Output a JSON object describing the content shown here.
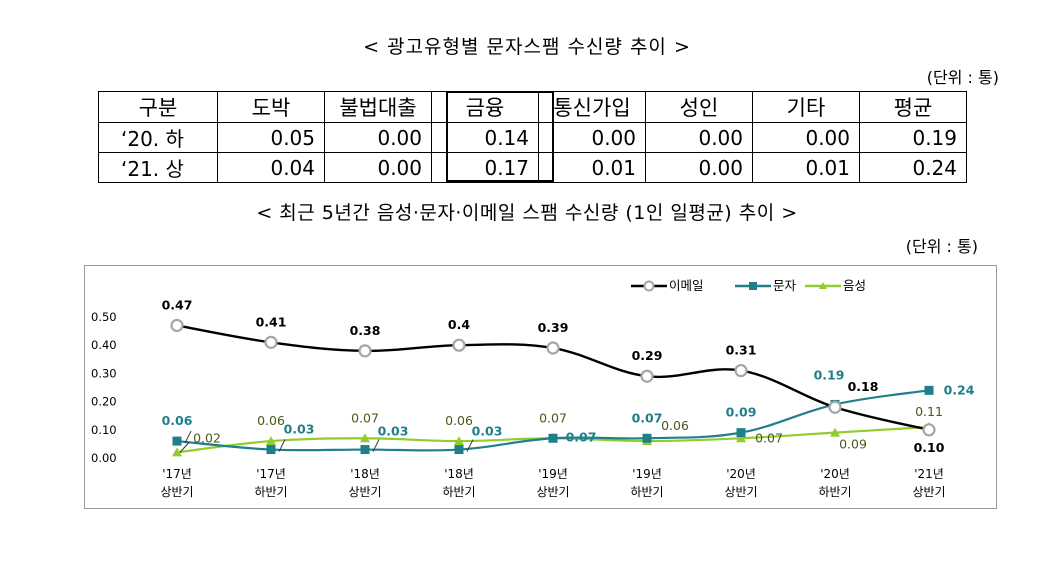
{
  "section1": {
    "title": "< 광고유형별 문자스팸 수신량 추이 >",
    "unit": "(단위 : 통)",
    "headers": [
      "구분",
      "도박",
      "불법대출",
      "금융",
      "통신가입",
      "성인",
      "기타",
      "평균"
    ],
    "rows": [
      {
        "label": "‘20. 하",
        "values": [
          "0.05",
          "0.00",
          "0.14",
          "0.00",
          "0.00",
          "0.00",
          "0.19"
        ]
      },
      {
        "label": "‘21. 상",
        "values": [
          "0.04",
          "0.00",
          "0.17",
          "0.01",
          "0.00",
          "0.01",
          "0.24"
        ]
      }
    ]
  },
  "section2": {
    "title": "< 최근 5년간 음성·문자·이메일 스팸 수신량 (1인 일평균) 추이 >",
    "unit": "(단위 : 통)"
  },
  "chart_data": {
    "type": "line",
    "title": "",
    "xlabel": "",
    "ylabel": "",
    "ylim": [
      0,
      0.5
    ],
    "yticks": [
      "0.00",
      "0.10",
      "0.20",
      "0.30",
      "0.40",
      "0.50"
    ],
    "grid": false,
    "legend_position": "top-right",
    "categories": [
      [
        "'17년",
        "상반기"
      ],
      [
        "'17년",
        "하반기"
      ],
      [
        "'18년",
        "상반기"
      ],
      [
        "'18년",
        "하반기"
      ],
      [
        "'19년",
        "상반기"
      ],
      [
        "'19년",
        "하반기"
      ],
      [
        "'20년",
        "상반기"
      ],
      [
        "'20년",
        "하반기"
      ],
      [
        "'21년",
        "상반기"
      ]
    ],
    "series": [
      {
        "name": "이메일",
        "color": "#000000",
        "marker": "circle",
        "values": [
          0.47,
          0.41,
          0.38,
          0.4,
          0.39,
          0.29,
          0.31,
          0.18,
          0.1
        ],
        "labels": [
          "0.47",
          "0.41",
          "0.38",
          "0.4",
          "0.39",
          "0.29",
          "0.31",
          "0.18",
          "0.10"
        ]
      },
      {
        "name": "문자",
        "color": "#1f7f8c",
        "marker": "square",
        "values": [
          0.06,
          0.03,
          0.03,
          0.03,
          0.07,
          0.07,
          0.09,
          0.19,
          0.24
        ],
        "labels": [
          "0.06",
          "0.03",
          "0.03",
          "0.03",
          "0.07",
          "0.07",
          "0.09",
          "0.19",
          "0.24"
        ]
      },
      {
        "name": "음성",
        "color": "#92cc2f",
        "marker": "triangle",
        "values": [
          0.02,
          0.06,
          0.07,
          0.06,
          0.07,
          0.06,
          0.07,
          0.09,
          0.11
        ],
        "labels": [
          "0.02",
          "0.06",
          "0.07",
          "0.06",
          "0.07",
          "0.06",
          "0.07",
          "0.09",
          "0.11"
        ]
      }
    ]
  }
}
